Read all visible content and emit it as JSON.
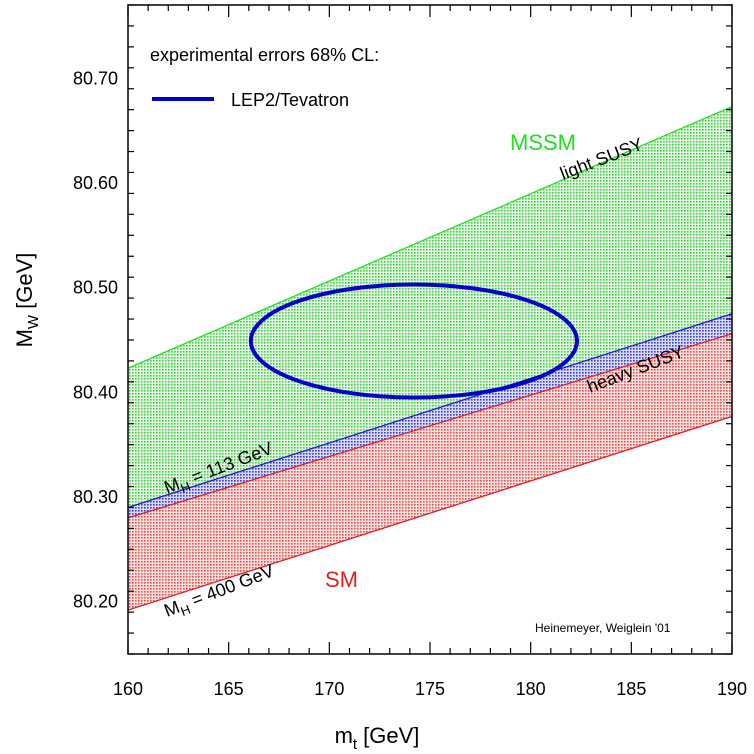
{
  "chart_data": {
    "type": "area",
    "xlabel": "m",
    "xlabel_sub": "t",
    "xlabel_unit": " [GeV]",
    "ylabel": "M",
    "ylabel_sub": "W",
    "ylabel_unit": " [GeV]",
    "xlim": [
      160,
      190
    ],
    "ylim": [
      80.15,
      80.77
    ],
    "xticks": [
      160,
      165,
      170,
      175,
      180,
      185,
      190
    ],
    "xtick_labels": [
      "160",
      "165",
      "170",
      "175",
      "180",
      "185",
      "190"
    ],
    "yticks": [
      80.2,
      80.3,
      80.4,
      80.5,
      80.6,
      80.7
    ],
    "ytick_labels": [
      "80.20",
      "80.30",
      "80.40",
      "80.50",
      "80.60",
      "80.70"
    ],
    "bands": [
      {
        "name": "MSSM",
        "color": "#22dd22",
        "fill": "#c8f0c8",
        "upper": [
          [
            160,
            80.423
          ],
          [
            190,
            80.673
          ]
        ],
        "lower": [
          [
            160,
            80.283
          ],
          [
            190,
            80.465
          ]
        ]
      },
      {
        "name": "M_H = 113 GeV",
        "color": "#1c1cd0",
        "fill": "#9fa8e8",
        "upper": [
          [
            160,
            80.29
          ],
          [
            190,
            80.475
          ]
        ],
        "lower": [
          [
            160,
            80.28
          ],
          [
            190,
            80.455
          ]
        ]
      },
      {
        "name": "SM",
        "color": "#dd2222",
        "fill": "#f2b8b8",
        "upper": [
          [
            160,
            80.28
          ],
          [
            190,
            80.456
          ]
        ],
        "lower": [
          [
            160,
            80.192
          ],
          [
            190,
            80.377
          ]
        ]
      }
    ],
    "ellipse": {
      "name": "LEP2/Tevatron",
      "color": "#0000cc",
      "center": [
        174.2,
        80.449
      ],
      "radius_x": 8.1,
      "radius_y": 0.054
    },
    "legend_title": "experimental errors 68% CL:",
    "legend_entry": "LEP2/Tevatron",
    "legend_placement": "top-left",
    "labels": {
      "mssm": "MSSM",
      "sm": "SM",
      "light_susy": "light SUSY",
      "heavy_susy": "heavy SUSY",
      "mh113_main": "M",
      "mh113_sub": "H",
      "mh113_rest": " = 113 GeV",
      "mh400_main": "M",
      "mh400_sub": "H",
      "mh400_rest": " = 400 GeV",
      "credit": "Heinemeyer, Weiglein '01"
    }
  }
}
